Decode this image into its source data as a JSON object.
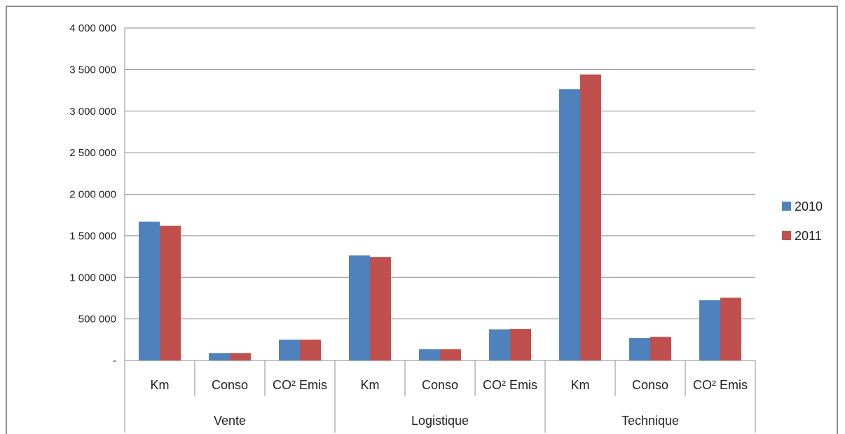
{
  "chart_data": {
    "type": "bar",
    "groups": [
      "Vente",
      "Logistique",
      "Technique"
    ],
    "subcategories": [
      "Km",
      "Conso",
      "CO² Emis"
    ],
    "series": [
      {
        "name": "2010",
        "color": "#4f81bd",
        "values": [
          1670000,
          90000,
          250000,
          1265000,
          135000,
          375000,
          3265000,
          270000,
          725000
        ]
      },
      {
        "name": "2011",
        "color": "#c0504d",
        "values": [
          1620000,
          90000,
          250000,
          1245000,
          135000,
          380000,
          3440000,
          285000,
          755000
        ]
      }
    ],
    "ylim": [
      0,
      4000000
    ],
    "yticks": [
      {
        "value": 0,
        "label": "-"
      },
      {
        "value": 500000,
        "label": "500 000"
      },
      {
        "value": 1000000,
        "label": "1 000 000"
      },
      {
        "value": 1500000,
        "label": "1 500 000"
      },
      {
        "value": 2000000,
        "label": "2 000 000"
      },
      {
        "value": 2500000,
        "label": "2 500 000"
      },
      {
        "value": 3000000,
        "label": "3 000 000"
      },
      {
        "value": 3500000,
        "label": "3 500 000"
      },
      {
        "value": 4000000,
        "label": "4 000 000"
      }
    ],
    "grid": true,
    "legend_position": "right"
  }
}
